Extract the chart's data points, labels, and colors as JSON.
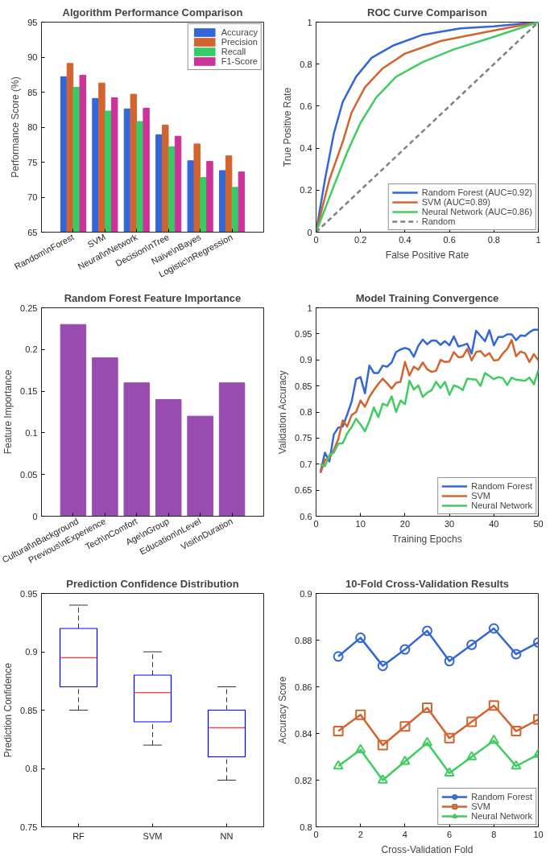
{
  "chart_data": [
    {
      "type": "bar",
      "title": "Algorithm Performance Comparison",
      "ylabel": "Performance Score (%)",
      "categories": [
        "Random\\nForest",
        "SVM",
        "Neural\\nNetwork",
        "Decision\\nTree",
        "Naive\\nBayes",
        "Logistic\\nRegression"
      ],
      "series": [
        {
          "name": "Accuracy",
          "color": "#3366d6",
          "values": [
            87.2,
            84.1,
            82.6,
            78.9,
            75.2,
            73.8
          ]
        },
        {
          "name": "Precision",
          "color": "#d2642f",
          "values": [
            89.1,
            86.3,
            84.7,
            80.3,
            77.6,
            75.9
          ]
        },
        {
          "name": "Recall",
          "color": "#35cc66",
          "values": [
            85.7,
            82.3,
            80.8,
            77.2,
            72.8,
            71.4
          ]
        },
        {
          "name": "F1-Score",
          "color": "#cc3399",
          "values": [
            87.4,
            84.2,
            82.7,
            78.7,
            75.1,
            73.6
          ]
        }
      ],
      "ylim": [
        65,
        95
      ],
      "yticks": [
        65,
        70,
        75,
        80,
        85,
        90,
        95
      ],
      "legend": "top right"
    },
    {
      "type": "line",
      "title": "ROC Curve Comparison",
      "xlabel": "False Positive Rate",
      "ylabel": "True Positive Rate",
      "series": [
        {
          "name": "Random Forest (AUC=0.92)",
          "color": "#3366d6",
          "x": [
            0,
            0.04,
            0.08,
            0.12,
            0.18,
            0.25,
            0.35,
            0.48,
            0.65,
            0.8,
            1
          ],
          "values": [
            0,
            0.25,
            0.47,
            0.62,
            0.74,
            0.83,
            0.89,
            0.94,
            0.97,
            0.98,
            1
          ]
        },
        {
          "name": "SVM (AUC=0.89)",
          "color": "#d2642f",
          "x": [
            0,
            0.06,
            0.12,
            0.16,
            0.22,
            0.3,
            0.4,
            0.56,
            0.7,
            0.85,
            1
          ],
          "values": [
            0,
            0.25,
            0.43,
            0.57,
            0.69,
            0.78,
            0.85,
            0.91,
            0.94,
            0.97,
            1
          ]
        },
        {
          "name": "Neural Network (AUC=0.86)",
          "color": "#40cc60",
          "x": [
            0,
            0.08,
            0.14,
            0.2,
            0.27,
            0.36,
            0.48,
            0.62,
            0.8,
            1
          ],
          "values": [
            0,
            0.22,
            0.38,
            0.52,
            0.64,
            0.74,
            0.81,
            0.87,
            0.93,
            1
          ]
        },
        {
          "name": "Random",
          "color": "#808080",
          "line_style": "dashed",
          "x": [
            0,
            1
          ],
          "values": [
            0,
            1
          ]
        }
      ],
      "xlim": [
        0,
        1
      ],
      "xticks": [
        0,
        0.2,
        0.4,
        0.6,
        0.8,
        1
      ],
      "ylim": [
        0,
        1
      ],
      "yticks": [
        0,
        0.2,
        0.4,
        0.6,
        0.8,
        1
      ],
      "legend": "bottom right"
    },
    {
      "type": "bar",
      "title": "Random Forest Feature Importance",
      "ylabel": "Feature Importance",
      "categories": [
        "Cultural\\nBackground",
        "Previous\\nExperience",
        "Tech\\nComfort",
        "Age\\nGroup",
        "Education\\nLevel",
        "Visit\\nDuration"
      ],
      "series": [
        {
          "color": "#984cb0",
          "values": [
            0.23,
            0.19,
            0.16,
            0.14,
            0.12,
            0.16
          ]
        }
      ],
      "ylim": [
        0,
        0.25
      ],
      "yticks": [
        0,
        0.05,
        0.1,
        0.15,
        0.2,
        0.25
      ]
    },
    {
      "type": "line",
      "title": "Model Training Convergence",
      "xlabel": "Training Epochs",
      "ylabel": "Validation Accuracy",
      "x": [
        1,
        2,
        3,
        4,
        5,
        6,
        7,
        8,
        9,
        10,
        11,
        12,
        13,
        14,
        15,
        16,
        17,
        18,
        19,
        20,
        21,
        22,
        23,
        24,
        25,
        26,
        27,
        28,
        29,
        30,
        31,
        32,
        33,
        34,
        35,
        36,
        37,
        38,
        39,
        40,
        41,
        42,
        43,
        44,
        45,
        46,
        47,
        48,
        49,
        50
      ],
      "series": [
        {
          "name": "Random Forest",
          "color": "#3366d6",
          "values": [
            0.685,
            0.722,
            0.705,
            0.757,
            0.77,
            0.772,
            0.795,
            0.82,
            0.863,
            0.867,
            0.836,
            0.889,
            0.875,
            0.875,
            0.889,
            0.887,
            0.895,
            0.915,
            0.92,
            0.923,
            0.92,
            0.906,
            0.927,
            0.939,
            0.93,
            0.937,
            0.937,
            0.929,
            0.936,
            0.928,
            0.945,
            0.926,
            0.928,
            0.931,
            0.912,
            0.956,
            0.946,
            0.936,
            0.957,
            0.928,
            0.944,
            0.944,
            0.949,
            0.949,
            0.938,
            0.947,
            0.946,
            0.953,
            0.958,
            0.958
          ]
        },
        {
          "name": "SVM",
          "color": "#d2642f",
          "values": [
            0.683,
            0.708,
            0.712,
            0.727,
            0.748,
            0.784,
            0.772,
            0.794,
            0.8,
            0.822,
            0.81,
            0.829,
            0.842,
            0.854,
            0.864,
            0.855,
            0.845,
            0.856,
            0.858,
            0.896,
            0.87,
            0.887,
            0.881,
            0.895,
            0.882,
            0.877,
            0.879,
            0.9,
            0.896,
            0.897,
            0.915,
            0.905,
            0.906,
            0.921,
            0.899,
            0.915,
            0.917,
            0.907,
            0.913,
            0.899,
            0.9,
            0.912,
            0.921,
            0.938,
            0.907,
            0.916,
            0.913,
            0.896,
            0.911,
            0.899
          ]
        },
        {
          "name": "Neural Network",
          "color": "#40cc60",
          "values": [
            0.7,
            0.696,
            0.718,
            0.722,
            0.739,
            0.74,
            0.759,
            0.771,
            0.787,
            0.776,
            0.763,
            0.783,
            0.809,
            0.79,
            0.816,
            0.812,
            0.83,
            0.8,
            0.822,
            0.815,
            0.86,
            0.843,
            0.851,
            0.829,
            0.837,
            0.842,
            0.858,
            0.846,
            0.858,
            0.833,
            0.851,
            0.848,
            0.842,
            0.864,
            0.863,
            0.862,
            0.85,
            0.875,
            0.869,
            0.863,
            0.867,
            0.865,
            0.852,
            0.866,
            0.862,
            0.861,
            0.86,
            0.866,
            0.853,
            0.88
          ]
        }
      ],
      "xlim": [
        0,
        50
      ],
      "xticks": [
        0,
        10,
        20,
        30,
        40,
        50
      ],
      "ylim": [
        0.6,
        1
      ],
      "yticks": [
        0.6,
        0.65,
        0.7,
        0.75,
        0.8,
        0.85,
        0.9,
        0.95,
        1
      ],
      "legend": "bottom right"
    },
    {
      "type": "box",
      "title": "Prediction Confidence Distribution",
      "ylabel": "Prediction Confidence",
      "categories": [
        "RF",
        "SVM",
        "NN"
      ],
      "series": [
        {
          "color": "#0000ff",
          "boxes": [
            {
              "low": 0.85,
              "q1": 0.87,
              "median": 0.895,
              "q3": 0.92,
              "high": 0.94
            },
            {
              "low": 0.82,
              "q1": 0.84,
              "median": 0.865,
              "q3": 0.88,
              "high": 0.9
            },
            {
              "low": 0.79,
              "q1": 0.81,
              "median": 0.835,
              "q3": 0.85,
              "high": 0.87
            }
          ]
        }
      ],
      "ylim": [
        0.75,
        0.95
      ],
      "yticks": [
        0.75,
        0.8,
        0.85,
        0.9,
        0.95
      ]
    },
    {
      "type": "line",
      "title": "10-Fold Cross-Validation Results",
      "xlabel": "Cross-Validation Fold",
      "ylabel": "Accuracy Score",
      "x": [
        1,
        2,
        3,
        4,
        5,
        6,
        7,
        8,
        9,
        10
      ],
      "series": [
        {
          "name": "Random Forest",
          "color": "#3366d6",
          "marker": "circle",
          "values": [
            0.873,
            0.881,
            0.869,
            0.876,
            0.884,
            0.871,
            0.878,
            0.885,
            0.874,
            0.879
          ]
        },
        {
          "name": "SVM",
          "color": "#d2642f",
          "marker": "square",
          "values": [
            0.841,
            0.848,
            0.835,
            0.843,
            0.851,
            0.838,
            0.845,
            0.852,
            0.841,
            0.846
          ]
        },
        {
          "name": "Neural Network",
          "color": "#40cc60",
          "marker": "triangle",
          "values": [
            0.826,
            0.833,
            0.82,
            0.828,
            0.836,
            0.823,
            0.83,
            0.837,
            0.826,
            0.831
          ]
        }
      ],
      "xlim": [
        0,
        10
      ],
      "xticks": [
        0,
        2,
        4,
        6,
        8,
        10
      ],
      "ylim": [
        0.8,
        0.9
      ],
      "yticks": [
        0.8,
        0.82,
        0.84,
        0.86,
        0.88,
        0.9
      ],
      "legend": "bottom right"
    }
  ]
}
